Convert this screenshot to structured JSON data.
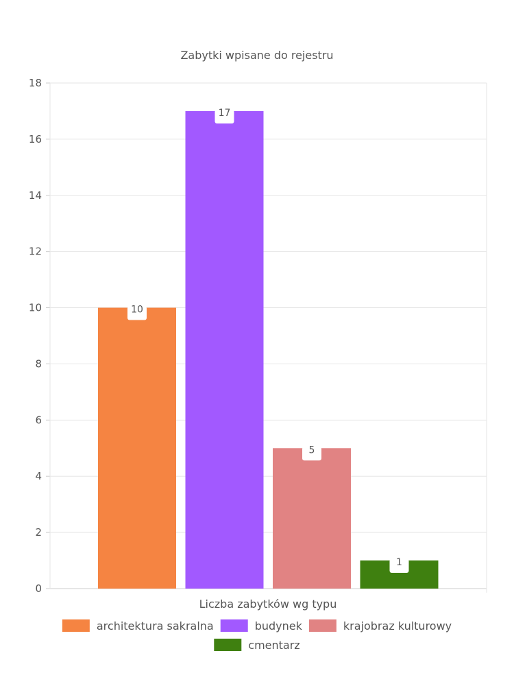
{
  "chart_data": {
    "type": "bar",
    "title": "Zabytki wpisane do rejestru",
    "xlabel": "Liczba zabytków wg typu",
    "ylabel": "",
    "ylim": [
      0,
      18
    ],
    "yticks": [
      0,
      2,
      4,
      6,
      8,
      10,
      12,
      14,
      16,
      18
    ],
    "grid": true,
    "legend_position": "bottom",
    "series": [
      {
        "name": "architektura sakralna",
        "value": 10,
        "color": "#f58442"
      },
      {
        "name": "budynek",
        "value": 17,
        "color": "#a259ff"
      },
      {
        "name": "krajobraz kulturowy",
        "value": 5,
        "color": "#e18383"
      },
      {
        "name": "cmentarz",
        "value": 1,
        "color": "#3f8010"
      }
    ]
  }
}
